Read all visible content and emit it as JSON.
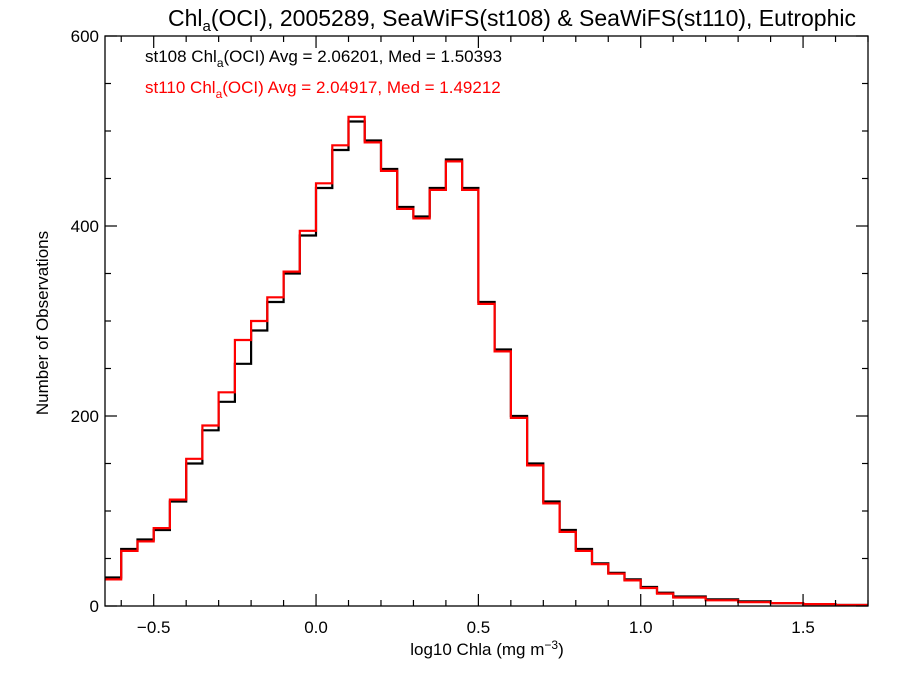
{
  "chart_data": {
    "type": "line",
    "title_parts": [
      "Chl",
      "a",
      "(OCI), 2005289, SeaWiFS(st108) & SeaWiFS(st110), Eutrophic"
    ],
    "xlabel_parts": [
      "log10 Chla (mg m",
      "−3",
      ")"
    ],
    "ylabel": "Number of Observations",
    "xlim": [
      -0.65,
      1.7
    ],
    "ylim": [
      0,
      600
    ],
    "x_tick_labels": [
      "−0.5",
      "0.0",
      "0.5",
      "1.0",
      "1.5"
    ],
    "x_tick_values": [
      -0.5,
      0.0,
      0.5,
      1.0,
      1.5
    ],
    "y_tick_labels": [
      "0",
      "200",
      "400",
      "600"
    ],
    "y_tick_values": [
      0,
      200,
      400,
      600
    ],
    "grid": false,
    "annotations": [
      {
        "color": "#000000",
        "parts": [
          "st108 Chl",
          "a",
          "(OCI) Avg = 2.06201, Med = 1.50393"
        ]
      },
      {
        "color": "#ff0000",
        "parts": [
          "st110 Chl",
          "a",
          "(OCI) Avg = 2.04917, Med = 1.49212"
        ]
      }
    ],
    "series": [
      {
        "color": "#000000",
        "x": [
          -0.65,
          -0.6,
          -0.55,
          -0.5,
          -0.45,
          -0.4,
          -0.35,
          -0.3,
          -0.25,
          -0.2,
          -0.15,
          -0.1,
          -0.05,
          0.0,
          0.05,
          0.1,
          0.15,
          0.2,
          0.25,
          0.3,
          0.35,
          0.4,
          0.45,
          0.5,
          0.55,
          0.6,
          0.65,
          0.7,
          0.75,
          0.8,
          0.85,
          0.9,
          0.95,
          1.0,
          1.05,
          1.1,
          1.2,
          1.3,
          1.4,
          1.5,
          1.6,
          1.7
        ],
        "y": [
          30,
          60,
          70,
          80,
          110,
          150,
          185,
          215,
          255,
          290,
          320,
          350,
          390,
          440,
          480,
          510,
          490,
          460,
          420,
          410,
          440,
          470,
          440,
          320,
          270,
          200,
          150,
          110,
          80,
          60,
          45,
          35,
          28,
          20,
          14,
          10,
          7,
          5,
          3,
          2,
          1,
          1
        ]
      },
      {
        "color": "#ff0000",
        "x": [
          -0.65,
          -0.6,
          -0.55,
          -0.5,
          -0.45,
          -0.4,
          -0.35,
          -0.3,
          -0.25,
          -0.2,
          -0.15,
          -0.1,
          -0.05,
          0.0,
          0.05,
          0.1,
          0.15,
          0.2,
          0.25,
          0.3,
          0.35,
          0.4,
          0.45,
          0.5,
          0.55,
          0.6,
          0.65,
          0.7,
          0.75,
          0.8,
          0.85,
          0.9,
          0.95,
          1.0,
          1.05,
          1.1,
          1.2,
          1.3,
          1.4,
          1.5,
          1.6,
          1.7
        ],
        "y": [
          28,
          58,
          68,
          82,
          112,
          155,
          190,
          225,
          280,
          300,
          325,
          352,
          395,
          445,
          485,
          515,
          488,
          458,
          418,
          408,
          438,
          468,
          438,
          318,
          268,
          198,
          148,
          108,
          78,
          58,
          44,
          34,
          27,
          19,
          13,
          9,
          6,
          4,
          3,
          2,
          1,
          1
        ]
      }
    ]
  }
}
